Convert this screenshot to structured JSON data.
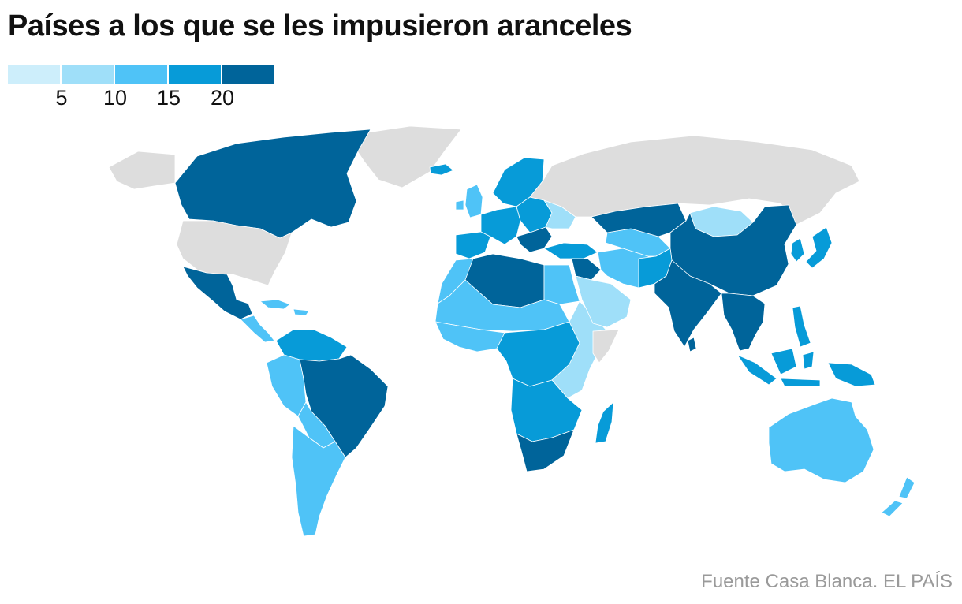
{
  "title": "Países a los que se les impusieron aranceles",
  "legend": {
    "colors": [
      "#cdeefb",
      "#9fdff9",
      "#4fc3f7",
      "#079bd8",
      "#00649a"
    ],
    "ticks": [
      "5",
      "10",
      "15",
      "20"
    ]
  },
  "map": {
    "no_data_color": "#dddddd",
    "countries": [
      {
        "id": "canada",
        "class": 4
      },
      {
        "id": "usa",
        "class": null
      },
      {
        "id": "mexico",
        "class": 4
      },
      {
        "id": "central-america",
        "class": 2
      },
      {
        "id": "caribbean",
        "class": 2
      },
      {
        "id": "greenland",
        "class": null
      },
      {
        "id": "colombia-venezuela",
        "class": 3
      },
      {
        "id": "peru-ecuador",
        "class": 2
      },
      {
        "id": "brazil",
        "class": 4
      },
      {
        "id": "bolivia-paraguay",
        "class": 2
      },
      {
        "id": "argentina-chile",
        "class": 2
      },
      {
        "id": "iceland",
        "class": 3
      },
      {
        "id": "uk-ireland",
        "class": 2
      },
      {
        "id": "iberia",
        "class": 3
      },
      {
        "id": "western-europe",
        "class": 3
      },
      {
        "id": "scandinavia",
        "class": 3
      },
      {
        "id": "eastern-europe",
        "class": 3
      },
      {
        "id": "balkans",
        "class": 4
      },
      {
        "id": "ukraine",
        "class": 1
      },
      {
        "id": "russia",
        "class": null
      },
      {
        "id": "turkey",
        "class": 3
      },
      {
        "id": "north-africa-west",
        "class": 2
      },
      {
        "id": "algeria-libya",
        "class": 4
      },
      {
        "id": "egypt",
        "class": 2
      },
      {
        "id": "sahel",
        "class": 2
      },
      {
        "id": "west-africa",
        "class": 2
      },
      {
        "id": "central-africa",
        "class": 3
      },
      {
        "id": "east-africa",
        "class": 1
      },
      {
        "id": "horn-somalia",
        "class": null
      },
      {
        "id": "southern-africa",
        "class": 3
      },
      {
        "id": "south-africa",
        "class": 4
      },
      {
        "id": "madagascar",
        "class": 3
      },
      {
        "id": "middle-east",
        "class": 4
      },
      {
        "id": "arabia",
        "class": 1
      },
      {
        "id": "iran",
        "class": 2
      },
      {
        "id": "central-asia",
        "class": 2
      },
      {
        "id": "kazakhstan",
        "class": 4
      },
      {
        "id": "mongolia",
        "class": 1
      },
      {
        "id": "china",
        "class": 4
      },
      {
        "id": "south-asia",
        "class": 3
      },
      {
        "id": "india",
        "class": 4
      },
      {
        "id": "sri-lanka",
        "class": 4
      },
      {
        "id": "southeast-asia",
        "class": 4
      },
      {
        "id": "korea",
        "class": 3
      },
      {
        "id": "japan",
        "class": 3
      },
      {
        "id": "philippines",
        "class": 3
      },
      {
        "id": "indonesia",
        "class": 3
      },
      {
        "id": "new-guinea",
        "class": 3
      },
      {
        "id": "australia",
        "class": 2
      },
      {
        "id": "new-zealand",
        "class": 2
      }
    ]
  },
  "source": "Fuente Casa Blanca. EL PAÍS"
}
